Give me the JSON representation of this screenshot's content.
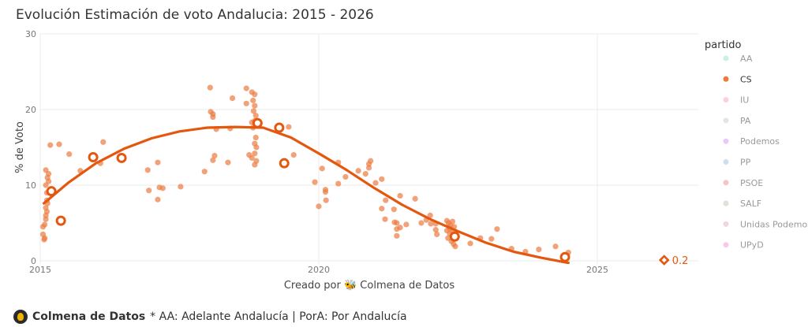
{
  "chart_data": {
    "type": "scatter",
    "title": "Evolución Estimación de voto Andalucia: 2015 - 2026",
    "xlabel": "Creado por 🐝 Colmena de Datos",
    "ylabel": "% de Voto",
    "xlim": [
      2015,
      2027
    ],
    "ylim": [
      0,
      30
    ],
    "x_ticks": [
      "2015",
      "2020",
      "2025"
    ],
    "y_ticks": [
      "0",
      "10",
      "20",
      "30"
    ],
    "grid": true,
    "legend_title": "partido",
    "legend_position": "right",
    "legend": [
      {
        "name": "AA",
        "color": "#a8e6cf",
        "active": false
      },
      {
        "name": "CS",
        "color": "#ec7a3e",
        "active": true
      },
      {
        "name": "IU",
        "color": "#f4b6c2",
        "active": false
      },
      {
        "name": "PA",
        "color": "#d3d3d3",
        "active": false
      },
      {
        "name": "Podemos",
        "color": "#d9a6f5",
        "active": false
      },
      {
        "name": "PP",
        "color": "#a9c8e0",
        "active": false
      },
      {
        "name": "PSOE",
        "color": "#e9a29b",
        "active": false
      },
      {
        "name": "SALF",
        "color": "#d4c9c2",
        "active": false
      },
      {
        "name": "Unidas Podemos",
        "color": "#e3b9cc",
        "active": false
      },
      {
        "name": "UPyD",
        "color": "#f2a6d8",
        "active": false
      }
    ],
    "series": [
      {
        "name": "CS",
        "color": "#ec7a3e",
        "polls": [
          [
            2015.05,
            4.5
          ],
          [
            2015.05,
            3.5
          ],
          [
            2015.07,
            2.8
          ],
          [
            2015.08,
            3.0
          ],
          [
            2015.1,
            6.0
          ],
          [
            2015.1,
            7.0
          ],
          [
            2015.12,
            8.0
          ],
          [
            2015.12,
            9.0
          ],
          [
            2015.1,
            10.0
          ],
          [
            2015.13,
            11.0
          ],
          [
            2015.1,
            12.0
          ],
          [
            2015.15,
            11.5
          ],
          [
            2015.15,
            10.5
          ],
          [
            2015.12,
            6.5
          ],
          [
            2015.1,
            5.5
          ],
          [
            2015.08,
            4.8
          ],
          [
            2015.13,
            7.6
          ],
          [
            2015.18,
            15.3
          ],
          [
            2015.34,
            15.4
          ],
          [
            2015.52,
            14.1
          ],
          [
            2015.72,
            11.9
          ],
          [
            2016.08,
            12.9
          ],
          [
            2016.13,
            15.7
          ],
          [
            2016.93,
            12.0
          ],
          [
            2017.11,
            13.0
          ],
          [
            2016.95,
            9.3
          ],
          [
            2017.14,
            9.7
          ],
          [
            2017.2,
            9.6
          ],
          [
            2017.11,
            8.1
          ],
          [
            2017.52,
            9.8
          ],
          [
            2017.95,
            11.8
          ],
          [
            2018.05,
            22.9
          ],
          [
            2018.06,
            19.7
          ],
          [
            2018.1,
            19.4
          ],
          [
            2018.1,
            19.0
          ],
          [
            2018.16,
            17.4
          ],
          [
            2018.13,
            13.9
          ],
          [
            2018.1,
            13.3
          ],
          [
            2018.37,
            13.0
          ],
          [
            2018.41,
            17.5
          ],
          [
            2018.45,
            21.5
          ],
          [
            2018.7,
            22.8
          ],
          [
            2018.7,
            20.8
          ],
          [
            2018.8,
            22.3
          ],
          [
            2018.85,
            22.0
          ],
          [
            2018.82,
            21.2
          ],
          [
            2018.85,
            20.5
          ],
          [
            2018.83,
            19.8
          ],
          [
            2018.87,
            19.2
          ],
          [
            2018.85,
            18.5
          ],
          [
            2018.8,
            18.3
          ],
          [
            2018.88,
            17.9
          ],
          [
            2018.82,
            17.6
          ],
          [
            2018.87,
            16.3
          ],
          [
            2018.85,
            15.5
          ],
          [
            2018.88,
            15.0
          ],
          [
            2018.85,
            14.2
          ],
          [
            2018.8,
            13.6
          ],
          [
            2018.88,
            13.2
          ],
          [
            2018.85,
            12.7
          ],
          [
            2018.75,
            14.0
          ],
          [
            2019.46,
            17.7
          ],
          [
            2019.55,
            14.0
          ],
          [
            2020.06,
            12.2
          ],
          [
            2019.93,
            10.4
          ],
          [
            2020.12,
            9.4
          ],
          [
            2020.12,
            9.1
          ],
          [
            2020.13,
            8.0
          ],
          [
            2020.0,
            7.2
          ],
          [
            2020.35,
            13.0
          ],
          [
            2020.35,
            10.2
          ],
          [
            2020.48,
            11.1
          ],
          [
            2020.71,
            11.9
          ],
          [
            2020.84,
            11.5
          ],
          [
            2020.9,
            12.3
          ],
          [
            2020.9,
            12.8
          ],
          [
            2020.93,
            13.2
          ],
          [
            2021.02,
            10.3
          ],
          [
            2021.13,
            10.8
          ],
          [
            2021.2,
            8.0
          ],
          [
            2021.13,
            6.9
          ],
          [
            2021.19,
            5.5
          ],
          [
            2021.35,
            6.8
          ],
          [
            2021.46,
            8.6
          ],
          [
            2021.36,
            5.1
          ],
          [
            2021.4,
            5.0
          ],
          [
            2021.46,
            4.4
          ],
          [
            2021.4,
            4.2
          ],
          [
            2021.4,
            3.3
          ],
          [
            2021.57,
            4.8
          ],
          [
            2021.73,
            8.2
          ],
          [
            2021.84,
            5.0
          ],
          [
            2021.93,
            5.4
          ],
          [
            2022.0,
            6.0
          ],
          [
            2022.01,
            4.9
          ],
          [
            2022.1,
            4.9
          ],
          [
            2022.1,
            4.1
          ],
          [
            2022.12,
            3.5
          ],
          [
            2022.3,
            5.3
          ],
          [
            2022.33,
            5.0
          ],
          [
            2022.36,
            4.7
          ],
          [
            2022.4,
            5.2
          ],
          [
            2022.43,
            4.5
          ],
          [
            2022.3,
            4.0
          ],
          [
            2022.35,
            3.6
          ],
          [
            2022.32,
            3.0
          ],
          [
            2022.38,
            2.6
          ],
          [
            2022.42,
            2.2
          ],
          [
            2022.45,
            1.9
          ],
          [
            2022.4,
            3.9
          ],
          [
            2022.35,
            4.3
          ],
          [
            2022.72,
            2.3
          ],
          [
            2022.9,
            3.0
          ],
          [
            2023.1,
            2.9
          ],
          [
            2023.2,
            4.2
          ],
          [
            2023.46,
            1.6
          ],
          [
            2023.71,
            1.2
          ],
          [
            2023.95,
            1.5
          ],
          [
            2024.25,
            1.9
          ],
          [
            2024.48,
            1.1
          ]
        ],
        "elections": [
          [
            2015.2,
            9.2
          ],
          [
            2015.37,
            5.3
          ],
          [
            2015.95,
            13.7
          ],
          [
            2016.46,
            13.6
          ],
          [
            2018.9,
            18.2
          ],
          [
            2019.29,
            17.6
          ],
          [
            2019.38,
            12.9
          ],
          [
            2022.44,
            3.2
          ],
          [
            2024.42,
            0.5
          ]
        ],
        "trend": [
          [
            2015.05,
            7.5
          ],
          [
            2015.5,
            10.3
          ],
          [
            2016.0,
            12.9
          ],
          [
            2016.5,
            14.8
          ],
          [
            2017.0,
            16.2
          ],
          [
            2017.5,
            17.1
          ],
          [
            2018.0,
            17.6
          ],
          [
            2018.5,
            17.7
          ],
          [
            2019.0,
            17.6
          ],
          [
            2019.5,
            16.3
          ],
          [
            2020.0,
            14.2
          ],
          [
            2020.5,
            12.0
          ],
          [
            2021.0,
            9.6
          ],
          [
            2021.5,
            7.4
          ],
          [
            2022.0,
            5.5
          ],
          [
            2022.5,
            3.9
          ],
          [
            2023.0,
            2.4
          ],
          [
            2023.5,
            1.2
          ],
          [
            2024.0,
            0.4
          ],
          [
            2024.5,
            -0.3
          ]
        ],
        "forecast": {
          "x": 2026.2,
          "value": 0.2,
          "label": "0.2"
        }
      }
    ]
  },
  "footer": {
    "brand": "Colmena de Datos",
    "note": "* AA: Adelante Andalucía | PorA: Por Andalucía"
  }
}
